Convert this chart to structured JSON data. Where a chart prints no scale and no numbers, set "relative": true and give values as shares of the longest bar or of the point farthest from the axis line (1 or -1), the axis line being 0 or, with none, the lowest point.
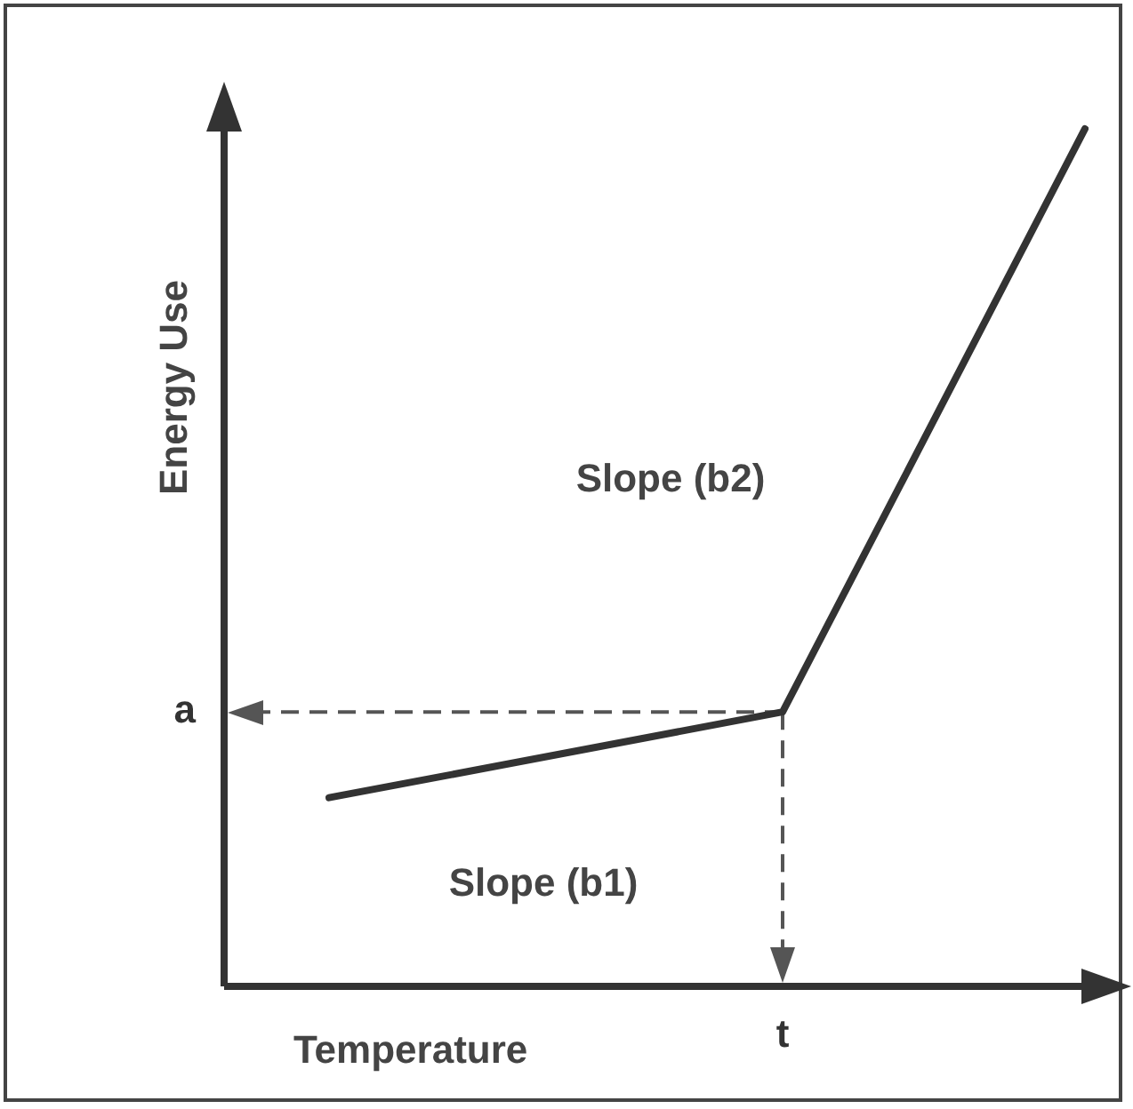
{
  "chart_data": {
    "type": "line",
    "relative": true,
    "xlabel": "Temperature",
    "ylabel": "Energy Use",
    "categories": [
      null,
      null,
      null,
      null,
      null,
      null
    ],
    "series": [
      {
        "color": "#333333",
        "values": [
          0.22,
          null,
          null,
          0.32,
          null,
          1
        ]
      }
    ],
    "ref_lines": [
      {
        "axis": "y",
        "value": 0.32,
        "label": "a",
        "line_style": "dashed",
        "color": "#555555"
      }
    ],
    "annotations": [
      "Slope (b1)",
      "Slope (b2)",
      "t"
    ]
  }
}
